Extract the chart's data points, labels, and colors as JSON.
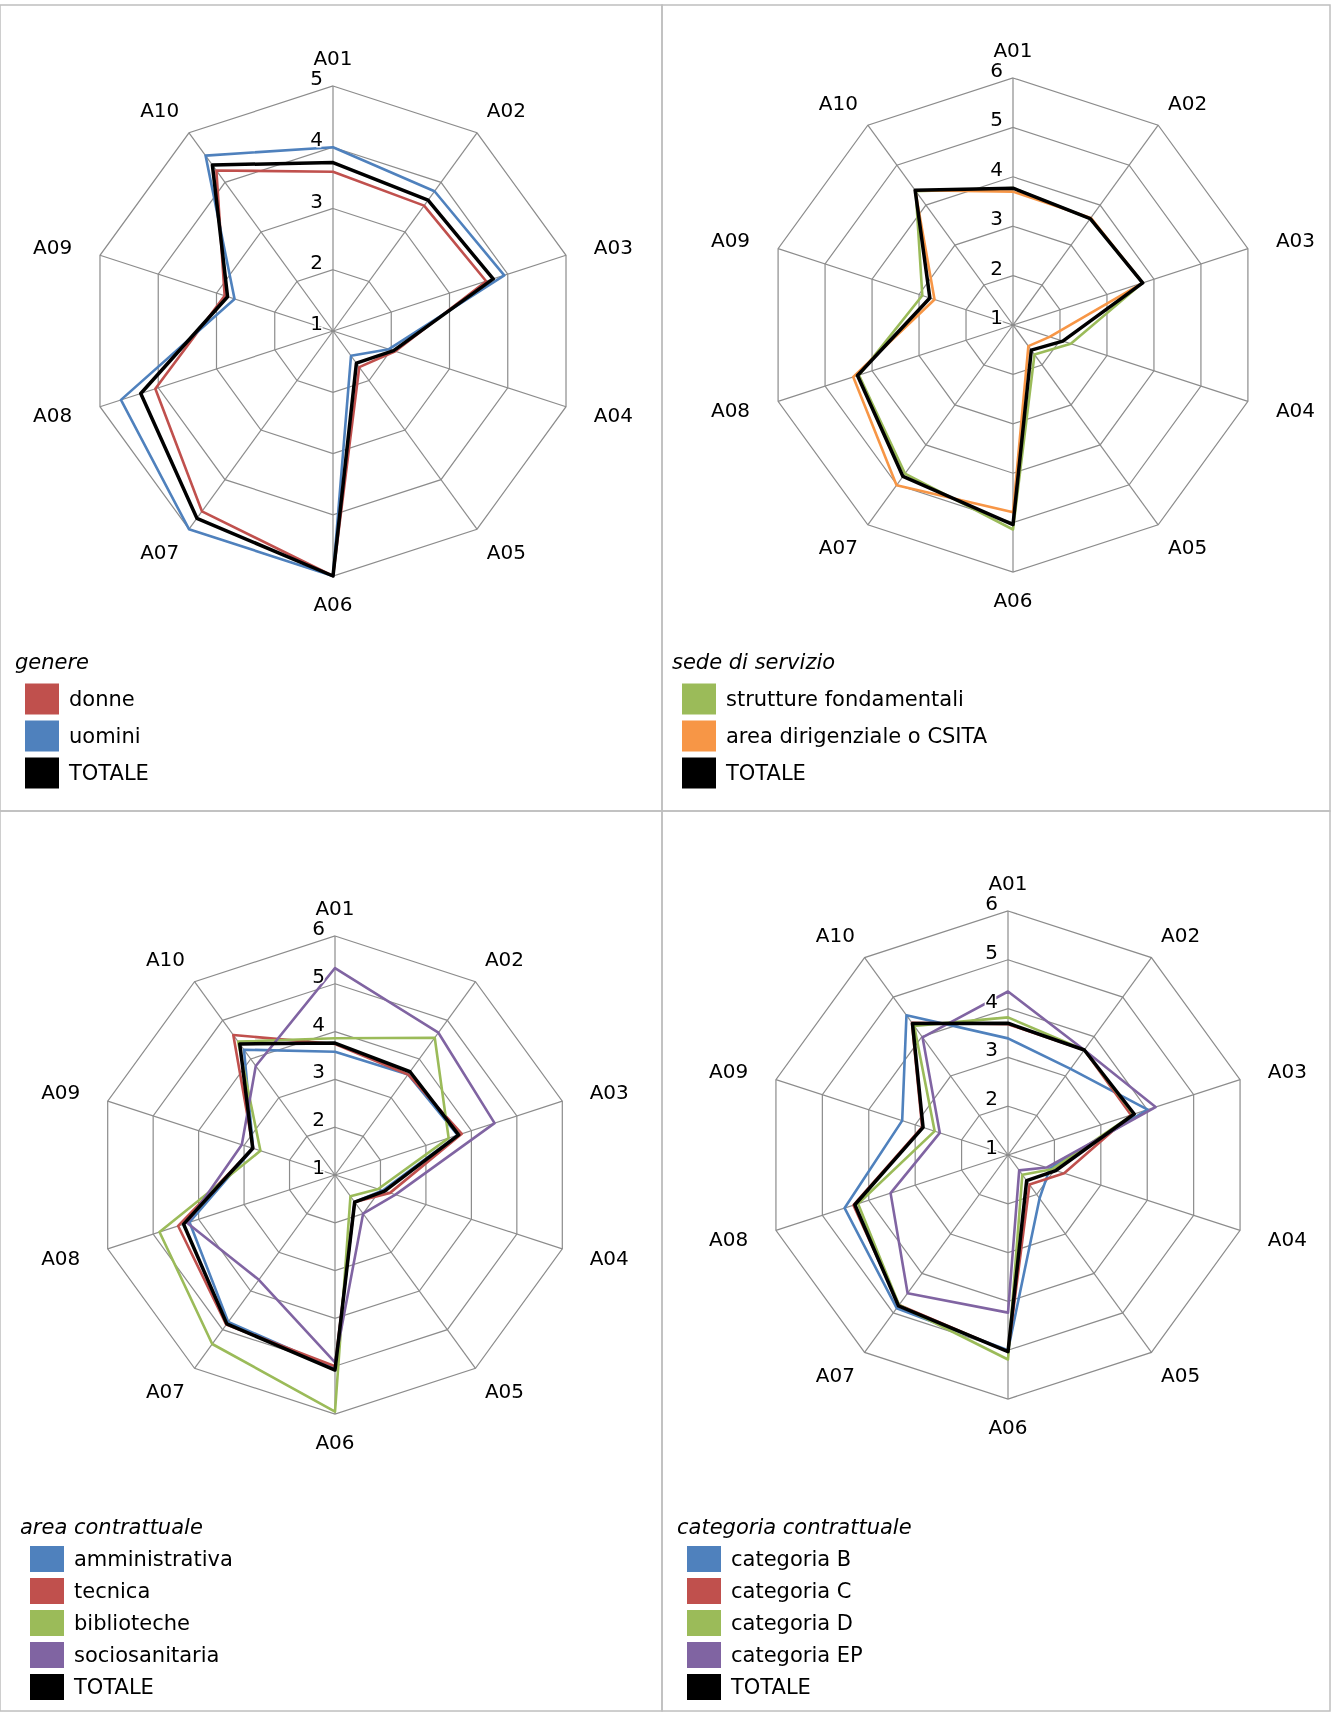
{
  "chart_data": [
    {
      "type": "radar",
      "categories": [
        "A01",
        "A02",
        "A03",
        "A04",
        "A05",
        "A06",
        "A07",
        "A08",
        "A09",
        "A10"
      ],
      "ylim": [
        1,
        5
      ],
      "yticks": [
        1,
        2,
        3,
        4,
        5
      ],
      "grid": true,
      "legend": "bottom",
      "legend_title": "genere",
      "series": [
        {
          "name": "donne",
          "color": "#c0504d",
          "values": [
            3.6,
            3.53,
            3.63,
            2.07,
            1.73,
            5.0,
            4.64,
            4.05,
            2.86,
            4.24
          ]
        },
        {
          "name": "uomini",
          "color": "#4f81bd",
          "values": [
            4.0,
            3.82,
            3.94,
            1.96,
            1.5,
            5.0,
            5.0,
            4.64,
            2.69,
            4.54
          ]
        },
        {
          "name": "TOTALE",
          "color": "#000000",
          "values": [
            3.75,
            3.64,
            3.75,
            2.04,
            1.65,
            5.0,
            4.78,
            4.3,
            2.81,
            4.35
          ]
        }
      ]
    },
    {
      "type": "radar",
      "categories": [
        "A01",
        "A02",
        "A03",
        "A04",
        "A05",
        "A06",
        "A07",
        "A08",
        "A09",
        "A10"
      ],
      "ylim": [
        1,
        6
      ],
      "yticks": [
        1,
        2,
        3,
        4,
        5,
        6
      ],
      "grid": true,
      "legend": "bottom",
      "legend_title": "sede di servizio",
      "series": [
        {
          "name": "strutture fondamentali",
          "color": "#9bbb59",
          "values": [
            3.77,
            3.66,
            3.76,
            2.23,
            1.74,
            5.14,
            4.72,
            4.28,
            2.93,
            4.35
          ]
        },
        {
          "name": "area dirigenziale o CSITA",
          "color": "#f79646",
          "values": [
            3.7,
            3.68,
            3.76,
            1.78,
            1.53,
            4.79,
            5.01,
            4.4,
            2.67,
            4.37
          ]
        },
        {
          "name": "TOTALE",
          "color": "#000000",
          "values": [
            3.77,
            3.66,
            3.76,
            2.06,
            1.63,
            5.04,
            4.79,
            4.31,
            2.77,
            4.37
          ]
        }
      ]
    },
    {
      "type": "radar",
      "categories": [
        "A01",
        "A02",
        "A03",
        "A04",
        "A05",
        "A06",
        "A07",
        "A08",
        "A09",
        "A10"
      ],
      "ylim": [
        1,
        6
      ],
      "yticks": [
        1,
        2,
        3,
        4,
        5,
        6
      ],
      "grid": true,
      "legend": "bottom",
      "legend_title": "area contrattuale",
      "series": [
        {
          "name": "amministrativa",
          "color": "#4f81bd",
          "values": [
            3.58,
            3.6,
            3.7,
            2.05,
            1.7,
            5.05,
            4.8,
            4.2,
            2.8,
            4.24
          ]
        },
        {
          "name": "tecnica",
          "color": "#c0504d",
          "values": [
            3.74,
            3.6,
            3.79,
            2.21,
            1.7,
            5.0,
            4.87,
            4.45,
            2.8,
            4.62
          ]
        },
        {
          "name": "biblioteche",
          "color": "#9bbb59",
          "values": [
            3.86,
            4.55,
            3.5,
            1.95,
            1.55,
            5.95,
            5.37,
            4.86,
            2.64,
            4.45
          ]
        },
        {
          "name": "sociosanitaria",
          "color": "#8064a2",
          "values": [
            5.33,
            4.68,
            4.51,
            2.33,
            2.0,
            4.92,
            3.71,
            4.25,
            3.05,
            3.82
          ]
        },
        {
          "name": "TOTALE",
          "color": "#000000",
          "values": [
            3.76,
            3.67,
            3.72,
            2.09,
            1.7,
            5.08,
            4.85,
            4.33,
            2.81,
            4.39
          ]
        }
      ]
    },
    {
      "type": "radar",
      "categories": [
        "A01",
        "A02",
        "A03",
        "A04",
        "A05",
        "A06",
        "A07",
        "A08",
        "A09",
        "A10"
      ],
      "ylim": [
        1,
        6
      ],
      "yticks": [
        1,
        2,
        3,
        4,
        5,
        6
      ],
      "grid": true,
      "legend": "bottom",
      "legend_title": "categoria contrattuale",
      "series": [
        {
          "name": "categoria B",
          "color": "#4f81bd",
          "values": [
            3.39,
            3.18,
            4.01,
            1.9,
            2.1,
            5.0,
            4.88,
            4.52,
            3.28,
            4.54
          ]
        },
        {
          "name": "categoria C",
          "color": "#c0504d",
          "values": [
            3.68,
            3.66,
            3.65,
            2.21,
            1.75,
            5.03,
            4.8,
            4.33,
            2.85,
            4.35
          ]
        },
        {
          "name": "categoria D",
          "color": "#9bbb59",
          "values": [
            3.82,
            3.66,
            3.7,
            1.95,
            1.5,
            5.19,
            4.8,
            4.23,
            2.58,
            4.27
          ]
        },
        {
          "name": "categoria EP",
          "color": "#8064a2",
          "values": [
            4.35,
            3.66,
            4.18,
            1.83,
            1.39,
            4.23,
            4.5,
            3.53,
            2.47,
            3.98
          ]
        },
        {
          "name": "TOTALE",
          "color": "#000000",
          "values": [
            3.7,
            3.66,
            3.72,
            2.03,
            1.65,
            5.03,
            4.82,
            4.3,
            2.83,
            4.33
          ]
        }
      ]
    }
  ]
}
